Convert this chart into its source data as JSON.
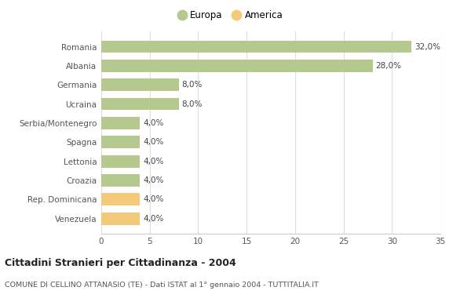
{
  "categories": [
    "Venezuela",
    "Rep. Dominicana",
    "Croazia",
    "Lettonia",
    "Spagna",
    "Serbia/Montenegro",
    "Ucraina",
    "Germania",
    "Albania",
    "Romania"
  ],
  "values": [
    4.0,
    4.0,
    4.0,
    4.0,
    4.0,
    4.0,
    8.0,
    8.0,
    28.0,
    32.0
  ],
  "colors": [
    "#f5c97a",
    "#f5c97a",
    "#b5c98e",
    "#b5c98e",
    "#b5c98e",
    "#b5c98e",
    "#b5c98e",
    "#b5c98e",
    "#b5c98e",
    "#b5c98e"
  ],
  "labels": [
    "4,0%",
    "4,0%",
    "4,0%",
    "4,0%",
    "4,0%",
    "4,0%",
    "8,0%",
    "8,0%",
    "28,0%",
    "32,0%"
  ],
  "europa_color": "#b5c98e",
  "america_color": "#f5c97a",
  "title": "Cittadini Stranieri per Cittadinanza - 2004",
  "subtitle": "COMUNE DI CELLINO ATTANASIO (TE) - Dati ISTAT al 1° gennaio 2004 - TUTTITALIA.IT",
  "xlim": [
    0,
    35
  ],
  "xticks": [
    0,
    5,
    10,
    15,
    20,
    25,
    30,
    35
  ],
  "background_color": "#ffffff",
  "grid_color": "#dddddd",
  "legend_europa": "Europa",
  "legend_america": "America"
}
